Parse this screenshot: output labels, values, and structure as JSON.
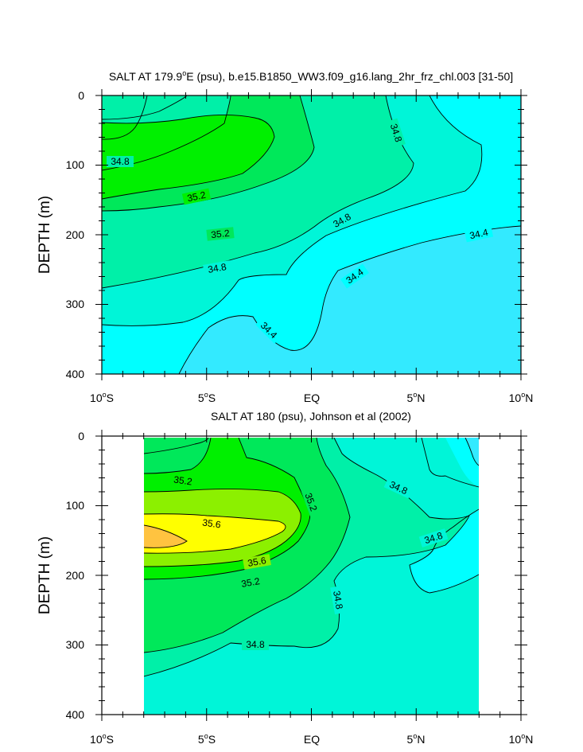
{
  "chart_data": [
    {
      "type": "contour",
      "title": "SALT AT 179.9°E (psu), b.e15.B1850_WW3.f09_g16.lang_2hr_frz_chl.003 [31-50]",
      "title_parts": {
        "pre": "SALT AT 179.9",
        "sup": "o",
        "post": "E (psu), b.e15.B1850_WW3.f09_g16.lang_2hr_frz_chl.003 [31-50]"
      },
      "ylabel": "DEPTH (m)",
      "ylim": [
        400,
        0
      ],
      "xlim": [
        -10,
        10
      ],
      "yticks": [
        "0",
        "100",
        "200",
        "300",
        "400"
      ],
      "xticks": [
        {
          "num": "10",
          "sup": "o",
          "hemi": "S"
        },
        {
          "num": "5",
          "sup": "o",
          "hemi": "S"
        },
        {
          "num": "EQ",
          "sup": "",
          "hemi": ""
        },
        {
          "num": "5",
          "sup": "o",
          "hemi": "N"
        },
        {
          "num": "10",
          "sup": "o",
          "hemi": "N"
        }
      ],
      "contour_labels": [
        "34.8",
        "35.2",
        "35.2",
        "34.8",
        "34.8",
        "34.8",
        "34.4",
        "34.4",
        "34.4"
      ],
      "data_lon_range": [
        -10,
        10
      ]
    },
    {
      "type": "contour",
      "title": "SALT AT 180 (psu), Johnson et al (2002)",
      "ylabel": "DEPTH (m)",
      "ylim": [
        400,
        0
      ],
      "xlim": [
        -10,
        10
      ],
      "yticks": [
        "0",
        "100",
        "200",
        "300",
        "400"
      ],
      "xticks": [
        {
          "num": "10",
          "sup": "o",
          "hemi": "S"
        },
        {
          "num": "5",
          "sup": "o",
          "hemi": "S"
        },
        {
          "num": "EQ",
          "sup": "",
          "hemi": ""
        },
        {
          "num": "5",
          "sup": "o",
          "hemi": "N"
        },
        {
          "num": "10",
          "sup": "o",
          "hemi": "N"
        }
      ],
      "contour_labels": [
        "35.2",
        "35.6",
        "35.6",
        "35.2",
        "35.2",
        "34.8",
        "34.8",
        "34.8",
        "34.8"
      ],
      "data_lon_range": [
        -8,
        8
      ]
    }
  ]
}
